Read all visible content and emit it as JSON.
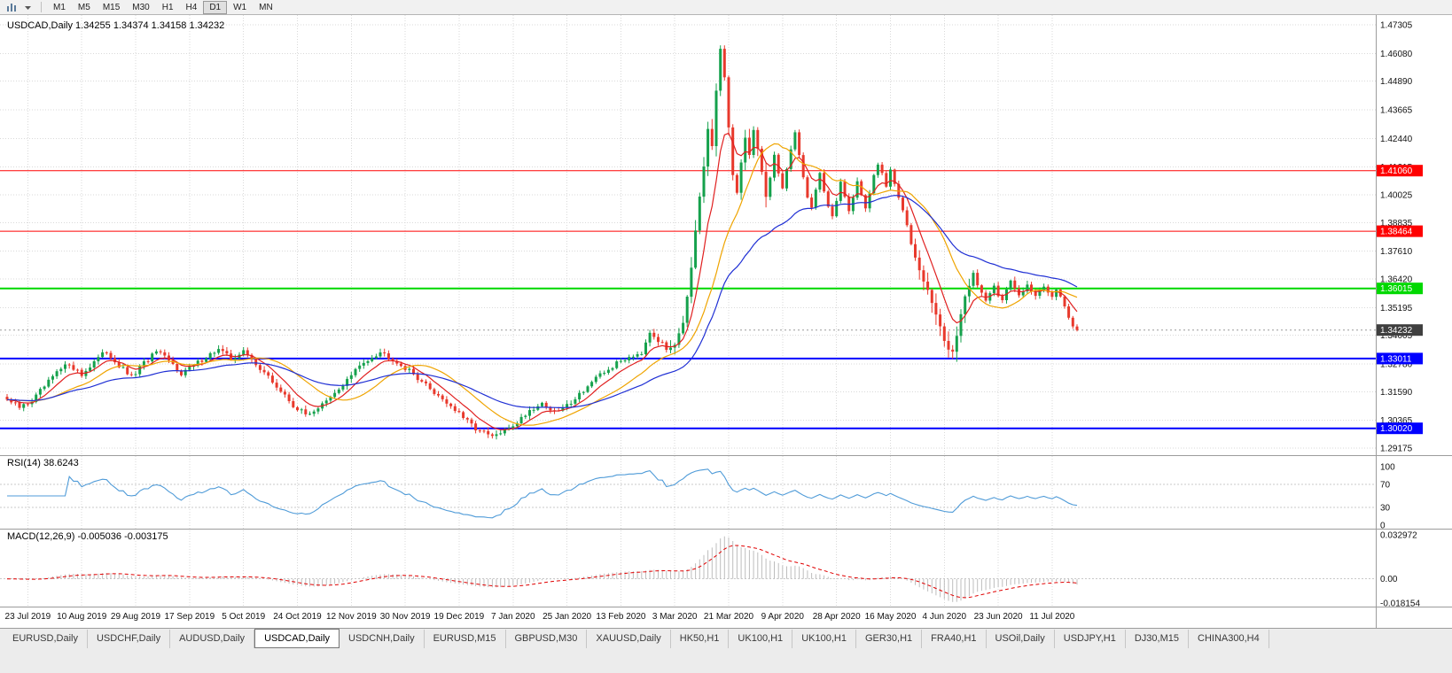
{
  "toolbar": {
    "timeframes": [
      "M1",
      "M5",
      "M15",
      "M30",
      "H1",
      "H4",
      "D1",
      "W1",
      "MN"
    ],
    "active_timeframe": "D1"
  },
  "chart": {
    "title_line": "USDCAD,Daily 1.34255 1.34374 1.34158 1.34232",
    "rsi_label": "RSI(14) 38.6243",
    "macd_label": "MACD(12,26,9) -0.005036 -0.003175"
  },
  "tabs": {
    "items": [
      "EURUSD,Daily",
      "USDCHF,Daily",
      "AUDUSD,Daily",
      "USDCAD,Daily",
      "USDCNH,Daily",
      "EURUSD,M15",
      "GBPUSD,M30",
      "XAUUSD,Daily",
      "HK50,H1",
      "UK100,H1",
      "UK100,H1",
      "GER30,H1",
      "FRA40,H1",
      "USOil,Daily",
      "USDJPY,H1",
      "DJ30,M15",
      "CHINA300,H4"
    ],
    "active_index": 3
  },
  "chart_data": {
    "type": "candlestick",
    "symbol": "USDCAD",
    "period": "Daily",
    "ohlc": {
      "open": 1.34255,
      "high": 1.34374,
      "low": 1.34158,
      "close": 1.34232
    },
    "bar_count": 259,
    "first_label_bar": 5,
    "label_step": 13,
    "x_axis_dates": [
      "23 Jul 2019",
      "10 Aug 2019",
      "29 Aug 2019",
      "17 Sep 2019",
      "5 Oct 2019",
      "24 Oct 2019",
      "12 Nov 2019",
      "30 Nov 2019",
      "19 Dec 2019",
      "7 Jan 2020",
      "25 Jan 2020",
      "13 Feb 2020",
      "3 Mar 2020",
      "21 Mar 2020",
      "9 Apr 2020",
      "28 Apr 2020",
      "16 May 2020",
      "4 Jun 2020",
      "23 Jun 2020",
      "11 Jul 2020"
    ],
    "y_axis_labels": [
      1.47305,
      1.4608,
      1.4489,
      1.43665,
      1.4244,
      1.41215,
      1.40025,
      1.38835,
      1.3761,
      1.3642,
      1.35195,
      1.34005,
      1.3278,
      1.3159,
      1.30365,
      1.29175
    ],
    "colors": {
      "bull": "#15a14c",
      "bear": "#e8392c",
      "grid": "#d9d9d9",
      "histogram": "#bdbdbd",
      "signal": "#e00000"
    },
    "horizontal_lines": [
      {
        "price": 1.4106,
        "label": "1.41060",
        "color": "#ff0000",
        "width": 1
      },
      {
        "price": 1.38464,
        "label": "1.38464",
        "color": "#ff0000",
        "width": 1
      },
      {
        "price": 1.36015,
        "label": "1.36015",
        "color": "#00d800",
        "width": 2
      },
      {
        "price": 1.33011,
        "label": "1.33011",
        "color": "#0000ff",
        "width": 2
      },
      {
        "price": 1.3002,
        "label": "1.30020",
        "color": "#0000ff",
        "width": 2
      }
    ],
    "current_price": {
      "value": 1.34232,
      "label": "1.34232",
      "badge_color": "#3f3f3f"
    },
    "moving_averages": [
      {
        "period": 8,
        "type": "ema",
        "color": "#e02020"
      },
      {
        "period": 18,
        "type": "sma",
        "color": "#efa400"
      },
      {
        "period": 40,
        "type": "ema",
        "color": "#1f2fd4"
      }
    ],
    "volatile_ranges": [
      [
        160,
        183
      ],
      [
        219,
        232
      ]
    ],
    "indicators": {
      "rsi": {
        "period": 14,
        "current": 38.6243,
        "levels": [
          100,
          70,
          30,
          0
        ],
        "color": "#4f9bd8"
      },
      "macd": {
        "fast": 12,
        "slow": 26,
        "signal": 9,
        "main": -0.005036,
        "signal_value": -0.003175,
        "axis_labels": [
          "0.032972",
          "0.00",
          "-0.018154"
        ]
      }
    },
    "price_path": [
      [
        0,
        1.3125
      ],
      [
        3,
        1.309
      ],
      [
        6,
        1.312
      ],
      [
        9,
        1.318
      ],
      [
        12,
        1.324
      ],
      [
        15,
        1.328
      ],
      [
        18,
        1.323
      ],
      [
        21,
        1.329
      ],
      [
        24,
        1.333
      ],
      [
        27,
        1.327
      ],
      [
        30,
        1.322
      ],
      [
        33,
        1.328
      ],
      [
        36,
        1.333
      ],
      [
        39,
        1.329
      ],
      [
        42,
        1.324
      ],
      [
        45,
        1.327
      ],
      [
        48,
        1.331
      ],
      [
        51,
        1.334
      ],
      [
        54,
        1.33
      ],
      [
        57,
        1.333
      ],
      [
        60,
        1.328
      ],
      [
        63,
        1.322
      ],
      [
        66,
        1.316
      ],
      [
        69,
        1.31
      ],
      [
        72,
        1.306
      ],
      [
        75,
        1.309
      ],
      [
        78,
        1.313
      ],
      [
        81,
        1.319
      ],
      [
        84,
        1.325
      ],
      [
        87,
        1.33
      ],
      [
        90,
        1.333
      ],
      [
        93,
        1.33
      ],
      [
        96,
        1.326
      ],
      [
        99,
        1.322
      ],
      [
        102,
        1.317
      ],
      [
        105,
        1.313
      ],
      [
        108,
        1.308
      ],
      [
        111,
        1.303
      ],
      [
        114,
        1.299
      ],
      [
        117,
        1.2965
      ],
      [
        120,
        1.299
      ],
      [
        123,
        1.303
      ],
      [
        126,
        1.308
      ],
      [
        129,
        1.311
      ],
      [
        132,
        1.307
      ],
      [
        135,
        1.31
      ],
      [
        138,
        1.315
      ],
      [
        141,
        1.32
      ],
      [
        144,
        1.324
      ],
      [
        147,
        1.328
      ],
      [
        150,
        1.331
      ],
      [
        153,
        1.333
      ],
      [
        155,
        1.342
      ],
      [
        157,
        1.338
      ],
      [
        159,
        1.334
      ],
      [
        161,
        1.337
      ],
      [
        163,
        1.346
      ],
      [
        164,
        1.356
      ],
      [
        165,
        1.368
      ],
      [
        166,
        1.384
      ],
      [
        167,
        1.399
      ],
      [
        168,
        1.412
      ],
      [
        169,
        1.428
      ],
      [
        170,
        1.421
      ],
      [
        171,
        1.445
      ],
      [
        172,
        1.463
      ],
      [
        173,
        1.45
      ],
      [
        174,
        1.428
      ],
      [
        175,
        1.409
      ],
      [
        176,
        1.402
      ],
      [
        177,
        1.414
      ],
      [
        178,
        1.424
      ],
      [
        179,
        1.418
      ],
      [
        180,
        1.428
      ],
      [
        181,
        1.42
      ],
      [
        182,
        1.41
      ],
      [
        183,
        1.4
      ],
      [
        184,
        1.408
      ],
      [
        185,
        1.417
      ],
      [
        186,
        1.41
      ],
      [
        187,
        1.403
      ],
      [
        188,
        1.411
      ],
      [
        189,
        1.419
      ],
      [
        190,
        1.426
      ],
      [
        191,
        1.417
      ],
      [
        192,
        1.408
      ],
      [
        193,
        1.4
      ],
      [
        194,
        1.395
      ],
      [
        195,
        1.403
      ],
      [
        196,
        1.41
      ],
      [
        197,
        1.402
      ],
      [
        198,
        1.395
      ],
      [
        199,
        1.39
      ],
      [
        200,
        1.398
      ],
      [
        201,
        1.406
      ],
      [
        202,
        1.4
      ],
      [
        203,
        1.394
      ],
      [
        204,
        1.399
      ],
      [
        205,
        1.406
      ],
      [
        206,
        1.4
      ],
      [
        207,
        1.395
      ],
      [
        208,
        1.401
      ],
      [
        209,
        1.408
      ],
      [
        210,
        1.413
      ],
      [
        211,
        1.409
      ],
      [
        212,
        1.404
      ],
      [
        213,
        1.41
      ],
      [
        214,
        1.405
      ],
      [
        215,
        1.399
      ],
      [
        216,
        1.393
      ],
      [
        217,
        1.387
      ],
      [
        218,
        1.38
      ],
      [
        219,
        1.374
      ],
      [
        220,
        1.369
      ],
      [
        221,
        1.364
      ],
      [
        222,
        1.359
      ],
      [
        223,
        1.354
      ],
      [
        224,
        1.349
      ],
      [
        225,
        1.343
      ],
      [
        226,
        1.338
      ],
      [
        227,
        1.3345
      ],
      [
        228,
        1.333
      ],
      [
        229,
        1.34
      ],
      [
        230,
        1.348
      ],
      [
        231,
        1.356
      ],
      [
        232,
        1.362
      ],
      [
        233,
        1.3665
      ],
      [
        234,
        1.362
      ],
      [
        235,
        1.358
      ],
      [
        236,
        1.355
      ],
      [
        237,
        1.359
      ],
      [
        238,
        1.362
      ],
      [
        239,
        1.3575
      ],
      [
        240,
        1.355
      ],
      [
        241,
        1.359
      ],
      [
        242,
        1.363
      ],
      [
        243,
        1.36
      ],
      [
        244,
        1.357
      ],
      [
        245,
        1.36
      ],
      [
        246,
        1.3625
      ],
      [
        247,
        1.3595
      ],
      [
        248,
        1.3565
      ],
      [
        249,
        1.359
      ],
      [
        250,
        1.3615
      ],
      [
        251,
        1.359
      ],
      [
        252,
        1.357
      ],
      [
        253,
        1.3605
      ],
      [
        254,
        1.3565
      ],
      [
        255,
        1.3515
      ],
      [
        256,
        1.3465
      ],
      [
        257,
        1.3445
      ],
      [
        258,
        1.34232
      ]
    ]
  }
}
